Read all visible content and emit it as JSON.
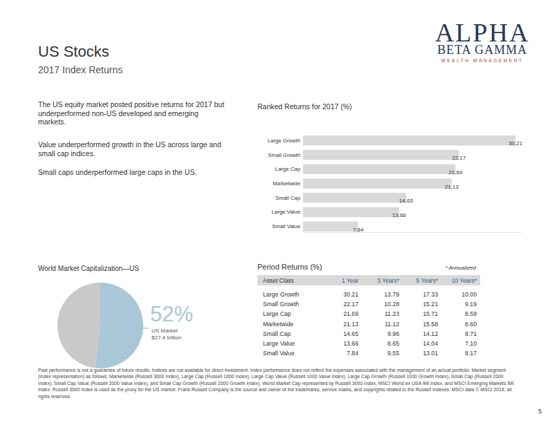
{
  "header": {
    "title": "US Stocks",
    "subtitle": "2017 Index Returns"
  },
  "logo": {
    "line1": "ALPHA",
    "line2": "BETA GAMMA",
    "line3": "WEALTH MANAGEMENT"
  },
  "paragraphs": [
    "The US equity market posted positive returns for 2017 but underperformed non-US developed and emerging markets.",
    "Value underperformed growth in the US across large and small cap indices.",
    "Small caps underperformed large caps in the US."
  ],
  "chart_data": [
    {
      "type": "bar",
      "title": "Ranked Returns for 2017 (%)",
      "orientation": "horizontal",
      "categories": [
        "Large Growth",
        "Small Growth",
        "Large Cap",
        "Marketwide",
        "Small Cap",
        "Large Value",
        "Small Value"
      ],
      "values": [
        30.21,
        22.17,
        21.69,
        21.13,
        14.65,
        13.66,
        7.84
      ],
      "value_labels": [
        "30,21",
        "22,17",
        "21,69",
        "21,13",
        "14,65",
        "13,66",
        "7,84"
      ],
      "data_labels": true,
      "color": "#d9d9d9",
      "xlim": [
        0,
        31
      ],
      "tick_labels": false,
      "grid": false
    },
    {
      "type": "pie",
      "title": "World Market Capitalization—US",
      "categories": [
        "US Market",
        null
      ],
      "values": [
        52,
        48
      ],
      "value_labels": [
        "52%",
        null
      ],
      "colors": [
        "#a9c7d6",
        "#c9c9c9"
      ],
      "annotation": "$27.4 trillion",
      "data_labels": true
    }
  ],
  "table": {
    "title": "Period Returns (%)",
    "note": "* Annualized",
    "header": [
      "Asset Class",
      "1 Year",
      "3 Years*",
      "5 Years*",
      "10 Years*"
    ],
    "rows": [
      [
        "Large Growth",
        "30.21",
        "13.79",
        "17.33",
        "10.00"
      ],
      [
        "Small Growth",
        "22.17",
        "10.28",
        "15.21",
        "9.19"
      ],
      [
        "Large Cap",
        "21.69",
        "11.23",
        "15.71",
        "8.59"
      ],
      [
        "Marketwide",
        "21.13",
        "11.12",
        "15.58",
        "8.60"
      ],
      [
        "Small Cap",
        "14.65",
        "9.96",
        "14.12",
        "8.71"
      ],
      [
        "Large Value",
        "13.66",
        "8.65",
        "14.04",
        "7.10"
      ],
      [
        "Small Value",
        "7.84",
        "9.55",
        "13.01",
        "8.17"
      ]
    ]
  },
  "footer": "Past performance is not a guarantee of future results. Indices are not available for direct investment. Index performance does not reflect the expenses associated with the management of an actual portfolio. Market segment (index representation) as follows: Marketwide (Russell 3000 Index), Large Cap (Russell 1000 Index), Large Cap Value (Russell 1000 Value Index), Large Cap Growth (Russell 1000 Growth Index), Small Cap (Russell 2000 Index), Small Cap Value (Russell 2000 Value Index), and Small Cap Growth (Russell 2000 Growth Index). World Market Cap represented by Russell 3000 Index, MSCI World ex USA IMI Index, and MSCI Emerging Markets IMI Index. Russell 3000 Index is used as the proxy for the US market. Frank Russell Company is the source and owner of the trademarks, service marks, and copyrights related to the Russell Indexes. MSCI data © MSCI 2018, all rights reserved.",
  "page_number": "5"
}
